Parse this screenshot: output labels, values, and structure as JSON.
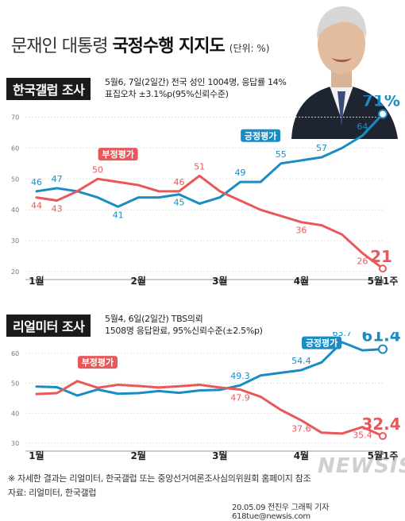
{
  "title": {
    "regular": "문재인 대통령",
    "bold": "국정수행 지지도",
    "unit": "(단위: %)"
  },
  "colors": {
    "positive": "#1a8cc4",
    "negative": "#e8585b",
    "axis": "#888888",
    "bg_panel": "#ffffff"
  },
  "chart_data": [
    {
      "type": "line",
      "poll_name": "한국갤럽 조사",
      "note_line1": "5월6, 7일(2일간) 전국 성인 1004명, 응답률 14%",
      "note_line2": "표집오차 ±3.1%p(95%신뢰수준)",
      "ylim": [
        20,
        75
      ],
      "yticks": [
        "70",
        "60",
        "50",
        "40",
        "30",
        "20"
      ],
      "xticks": [
        "1월",
        "2월",
        "3월",
        "4월",
        "5월1주"
      ],
      "x": [
        "1월1주",
        "1월2주",
        "1월3주",
        "1월4주",
        "1월5주",
        "2월1주",
        "2월2주",
        "2월3주",
        "2월4주",
        "3월1주",
        "3월2주",
        "3월3주",
        "3월4주",
        "4월1주",
        "4월2주",
        "4월3주",
        "4월4주",
        "5월1주"
      ],
      "series": [
        {
          "name": "긍정평가",
          "color": "#1a8cc4",
          "values": [
            46,
            47,
            46,
            44,
            41,
            44,
            44,
            45,
            42,
            44,
            49,
            49,
            55,
            56,
            57,
            60,
            64,
            71
          ],
          "labels": {
            "0": "46",
            "1": "47",
            "4": "41",
            "7": "45",
            "10": "49",
            "12": "55",
            "14": "57",
            "16": "64",
            "17": "71%"
          }
        },
        {
          "name": "부정평가",
          "color": "#e8585b",
          "values": [
            44,
            43,
            46,
            50,
            49,
            48,
            46,
            46,
            51,
            46,
            43,
            40,
            38,
            36,
            35,
            32,
            26,
            21
          ],
          "labels": {
            "0": "44",
            "1": "43",
            "3": "50",
            "7": "46",
            "8": "51",
            "13": "36",
            "16": "26",
            "17": "21"
          }
        }
      ]
    },
    {
      "type": "line",
      "poll_name": "리얼미터 조사",
      "note_line1": "5월4, 6일(2일간) TBS의뢰",
      "note_line2": "1508명 응답완료, 95%신뢰수준(±2.5%p)",
      "ylim": [
        30,
        65
      ],
      "yticks": [
        "60",
        "50",
        "40",
        "30"
      ],
      "xticks": [
        "1월",
        "2월",
        "3월",
        "4월",
        "5월1주"
      ],
      "x": [
        "1월1주",
        "1월2주",
        "1월3주",
        "1월4주",
        "1월5주",
        "2월1주",
        "2월2주",
        "2월3주",
        "2월4주",
        "3월1주",
        "3월2주",
        "3월3주",
        "3월4주",
        "4월1주",
        "4월2주",
        "4월3주",
        "4월4주",
        "5월1주"
      ],
      "series": [
        {
          "name": "긍정평가",
          "color": "#1a8cc4",
          "values": [
            48.9,
            48.7,
            45.9,
            47.9,
            46.5,
            46.7,
            47.4,
            46.8,
            47.6,
            47.8,
            49.3,
            52.6,
            53.5,
            54.4,
            57.0,
            63.7,
            61.0,
            61.4
          ],
          "labels": {
            "10": "49.3",
            "13": "54.4",
            "15": "63.7",
            "17": "61.4"
          }
        },
        {
          "name": "부정평가",
          "color": "#e8585b",
          "values": [
            46.4,
            46.7,
            50.7,
            48.5,
            49.5,
            49.1,
            48.6,
            49.0,
            49.5,
            48.6,
            47.9,
            45.5,
            41.1,
            37.6,
            33.5,
            33.2,
            35.4,
            32.4
          ],
          "labels": {
            "10": "47.9",
            "13": "37.6",
            "16": "35.4",
            "17": "32.4"
          }
        }
      ]
    }
  ],
  "footnote": "※ 자세한 결과는 리얼미터, 한국갤럽 또는 중앙선거여론조사심의위원회 홈페이지 참조",
  "source": "자료: 리얼미터, 한국갤럽",
  "credit": "20.05.09 전진우 그래픽 기자 618tue@newsis.com",
  "watermark": "NEWSIS"
}
